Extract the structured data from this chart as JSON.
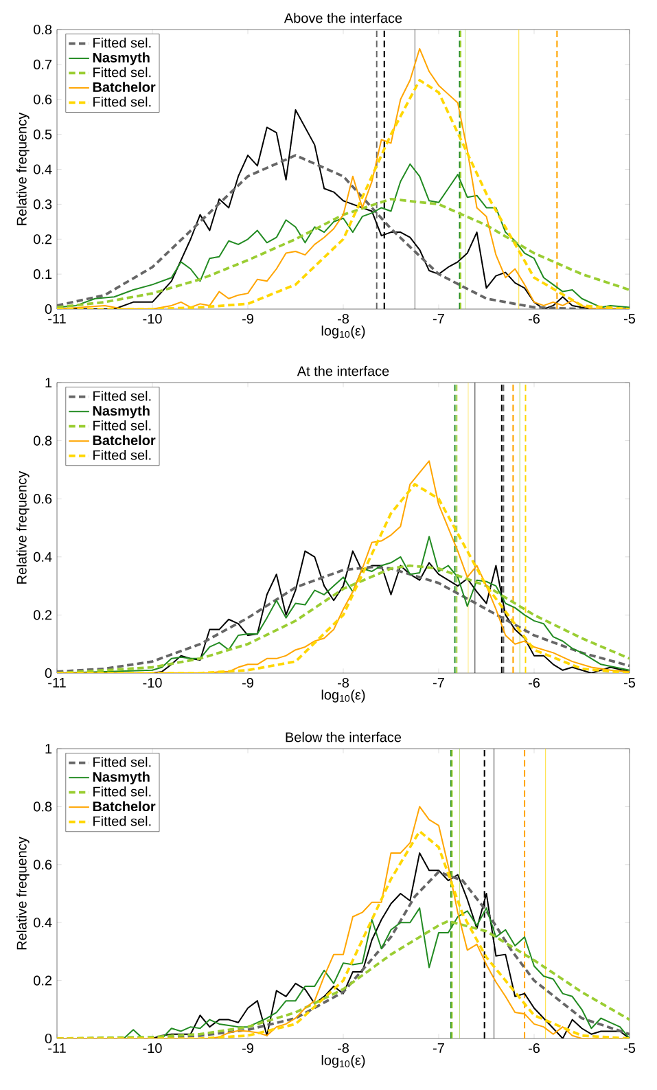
{
  "chart_data": [
    {
      "type": "line",
      "title": "Above the interface",
      "xlabel": "log$_{10}$(ε)",
      "ylabel": "Relative frequency",
      "xlim": [
        -11,
        -5
      ],
      "xticks": [
        -11,
        -10,
        -9,
        -8,
        -7,
        -6,
        -5
      ],
      "ylim": [
        0,
        0.8
      ],
      "yticks": [
        0,
        0.1,
        0.2,
        0.3,
        0.4,
        0.5,
        0.6,
        0.7,
        0.8
      ],
      "grid": false,
      "legend": "top left",
      "series": [
        {
          "color": "#000000",
          "line_style": "solid",
          "x": [
            -11,
            -10.8,
            -10.6,
            -10.4,
            -10.2,
            -10,
            -9.8,
            -9.6,
            -9.5,
            -9.4,
            -9.3,
            -9.2,
            -9.1,
            -9,
            -8.9,
            -8.8,
            -8.7,
            -8.6,
            -8.5,
            -8.3,
            -8.2,
            -8.1,
            -8,
            -7.8,
            -7.7,
            -7.6,
            -7.5,
            -7.4,
            -7.3,
            -7.2,
            -7.1,
            -7,
            -6.9,
            -6.8,
            -6.7,
            -6.6,
            -6.5,
            -6.4,
            -6.3,
            -6.2,
            -6.1,
            -6,
            -5.9,
            -5.8,
            -5.7,
            -5.6,
            -5.4,
            -5
          ],
          "values": [
            0,
            0,
            0,
            0,
            0.02,
            0.02,
            0.08,
            0.2,
            0.27,
            0.225,
            0.315,
            0.29,
            0.38,
            0.44,
            0.41,
            0.52,
            0.505,
            0.37,
            0.57,
            0.47,
            0.345,
            0.335,
            0.31,
            0.29,
            0.28,
            0.21,
            0.22,
            0.22,
            0.205,
            0.17,
            0.11,
            0.1,
            0.12,
            0.135,
            0.16,
            0.22,
            0.06,
            0.095,
            0.105,
            0.075,
            0.06,
            0.02,
            0,
            0.01,
            0.035,
            0.01,
            0,
            0
          ]
        },
        {
          "name": "Fitted sel.",
          "color": "#666666",
          "line_style": "dashed",
          "x": [
            -11,
            -10.5,
            -10,
            -9.5,
            -9,
            -8.5,
            -8,
            -7.5,
            -7,
            -6.5,
            -6,
            -5.5,
            -5
          ],
          "values": [
            0.01,
            0.04,
            0.12,
            0.25,
            0.38,
            0.44,
            0.38,
            0.23,
            0.1,
            0.03,
            0.005,
            0,
            0
          ]
        },
        {
          "name": "Nasmyth",
          "color": "#228b22",
          "line_style": "solid",
          "x": [
            -11,
            -10.8,
            -10.6,
            -10.4,
            -10.2,
            -10,
            -9.8,
            -9.7,
            -9.6,
            -9.5,
            -9.4,
            -9.3,
            -9.2,
            -9.1,
            -9,
            -8.9,
            -8.8,
            -8.7,
            -8.6,
            -8.5,
            -8.4,
            -8.3,
            -8.2,
            -8.1,
            -8,
            -7.9,
            -7.8,
            -7.7,
            -7.6,
            -7.5,
            -7.4,
            -7.3,
            -7.2,
            -7.1,
            -7,
            -6.9,
            -6.8,
            -6.7,
            -6.6,
            -6.5,
            -6.4,
            -6.3,
            -6.2,
            -6.1,
            -6,
            -5.9,
            -5.8,
            -5.7,
            -5.6,
            -5.5,
            -5.3,
            -5.2,
            -5
          ],
          "values": [
            0.005,
            0.01,
            0.03,
            0.035,
            0.055,
            0.07,
            0.09,
            0.135,
            0.115,
            0.08,
            0.145,
            0.15,
            0.195,
            0.185,
            0.2,
            0.225,
            0.19,
            0.205,
            0.255,
            0.235,
            0.19,
            0.235,
            0.22,
            0.25,
            0.26,
            0.22,
            0.265,
            0.275,
            0.29,
            0.28,
            0.365,
            0.415,
            0.38,
            0.31,
            0.305,
            0.345,
            0.385,
            0.32,
            0.325,
            0.29,
            0.29,
            0.22,
            0.195,
            0.16,
            0.145,
            0.09,
            0.07,
            0.05,
            0.055,
            0.03,
            0.005,
            0.01,
            0.005
          ]
        },
        {
          "name": "Fitted sel.",
          "color": "#9acd32",
          "line_style": "dashed",
          "x": [
            -11,
            -10.5,
            -10,
            -9.5,
            -9,
            -8.5,
            -8,
            -7.5,
            -7,
            -6.5,
            -6,
            -5.5,
            -5
          ],
          "values": [
            0.005,
            0.02,
            0.045,
            0.085,
            0.14,
            0.2,
            0.27,
            0.315,
            0.3,
            0.24,
            0.16,
            0.1,
            0.055
          ]
        },
        {
          "name": "Batchelor",
          "color": "#ffa500",
          "line_style": "solid",
          "x": [
            -11,
            -10.5,
            -10.3,
            -10,
            -9.8,
            -9.7,
            -9.6,
            -9.5,
            -9.4,
            -9.3,
            -9.2,
            -9.1,
            -9,
            -8.9,
            -8.8,
            -8.7,
            -8.6,
            -8.5,
            -8.4,
            -8.3,
            -8.2,
            -8.1,
            -8,
            -7.9,
            -7.8,
            -7.7,
            -7.6,
            -7.5,
            -7.4,
            -7.3,
            -7.2,
            -7.1,
            -7,
            -6.9,
            -6.8,
            -6.7,
            -6.6,
            -6.5,
            -6.4,
            -6.3,
            -6.2,
            -6.1,
            -6,
            -5.9,
            -5.8,
            -5.7,
            -5.6,
            -5.5,
            -5.4,
            -5
          ],
          "values": [
            0,
            0.01,
            0,
            0,
            0.01,
            0.02,
            0.005,
            0.015,
            0.01,
            0.05,
            0.03,
            0.04,
            0.045,
            0.085,
            0.08,
            0.115,
            0.16,
            0.165,
            0.155,
            0.185,
            0.205,
            0.23,
            0.27,
            0.38,
            0.29,
            0.365,
            0.485,
            0.475,
            0.6,
            0.655,
            0.745,
            0.68,
            0.64,
            0.615,
            0.59,
            0.455,
            0.29,
            0.265,
            0.155,
            0.09,
            0.115,
            0.07,
            0.02,
            0.01,
            0.02,
            0.01,
            0.025,
            0.01,
            0,
            0
          ]
        },
        {
          "name": "Fitted sel.",
          "color": "#ffd700",
          "line_style": "dashed",
          "x": [
            -11,
            -10,
            -9.5,
            -9,
            -8.5,
            -8,
            -7.5,
            -7.2,
            -7,
            -6.5,
            -6,
            -5.5,
            -5
          ],
          "values": [
            0,
            0,
            0.005,
            0.015,
            0.07,
            0.2,
            0.5,
            0.655,
            0.62,
            0.33,
            0.09,
            0.01,
            0
          ]
        }
      ],
      "ref_lines": [
        {
          "axis": "x",
          "value": -7.65,
          "color": "#666666",
          "line_style": "dashed"
        },
        {
          "axis": "x",
          "value": -7.57,
          "color": "#000000",
          "line_style": "dashed"
        },
        {
          "axis": "x",
          "value": -7.25,
          "color": "#000000",
          "line_style": "solid"
        },
        {
          "axis": "x",
          "value": -6.78,
          "color": "#228b22",
          "line_style": "dashed"
        },
        {
          "axis": "x",
          "value": -6.77,
          "color": "#9acd32",
          "line_style": "dashed"
        },
        {
          "axis": "x",
          "value": -6.72,
          "color": "#9acd32",
          "line_style": "solid"
        },
        {
          "axis": "x",
          "value": -6.16,
          "color": "#ffd700",
          "line_style": "solid"
        },
        {
          "axis": "x",
          "value": -5.76,
          "color": "#ffa500",
          "line_style": "dashed"
        }
      ]
    },
    {
      "type": "line",
      "title": "At the interface",
      "xlabel": "log$_{10}$(ε)",
      "ylabel": "Relative frequency",
      "xlim": [
        -11,
        -5
      ],
      "xticks": [
        -11,
        -10,
        -9,
        -8,
        -7,
        -6,
        -5
      ],
      "ylim": [
        0,
        1
      ],
      "yticks": [
        0,
        0.2,
        0.4,
        0.6,
        0.8,
        1
      ],
      "grid": false,
      "legend": "top left",
      "series": [
        {
          "color": "#000000",
          "line_style": "solid",
          "x": [
            -11,
            -10,
            -9.9,
            -9.8,
            -9.7,
            -9.6,
            -9.5,
            -9.4,
            -9.3,
            -9.2,
            -9.1,
            -9,
            -8.9,
            -8.8,
            -8.7,
            -8.6,
            -8.5,
            -8.4,
            -8.3,
            -8.2,
            -8.1,
            -8,
            -7.9,
            -7.8,
            -7.7,
            -7.6,
            -7.5,
            -7.4,
            -7.3,
            -7.2,
            -7.1,
            -7,
            -6.9,
            -6.8,
            -6.7,
            -6.6,
            -6.5,
            -6.4,
            -6.3,
            -6.2,
            -6.1,
            -6,
            -5.9,
            -5.8,
            -5.7,
            -5.6,
            -5.4,
            -5.2,
            -5
          ],
          "values": [
            0,
            0,
            0.005,
            0.03,
            0.06,
            0.05,
            0.045,
            0.15,
            0.15,
            0.185,
            0.17,
            0.13,
            0.135,
            0.27,
            0.34,
            0.2,
            0.285,
            0.42,
            0.4,
            0.3,
            0.25,
            0.3,
            0.42,
            0.35,
            0.37,
            0.37,
            0.27,
            0.37,
            0.34,
            0.32,
            0.38,
            0.34,
            0.32,
            0.3,
            0.325,
            0.28,
            0.24,
            0.37,
            0.2,
            0.15,
            0.12,
            0.06,
            0.06,
            0.03,
            0.01,
            0.02,
            0,
            0.02,
            0.005
          ]
        },
        {
          "name": "Fitted sel.",
          "color": "#666666",
          "line_style": "dashed",
          "x": [
            -11,
            -10.5,
            -10,
            -9.5,
            -9,
            -8.5,
            -8,
            -7.7,
            -7.5,
            -7,
            -6.5,
            -6,
            -5.5,
            -5
          ],
          "values": [
            0.005,
            0.015,
            0.04,
            0.1,
            0.19,
            0.295,
            0.355,
            0.365,
            0.36,
            0.31,
            0.22,
            0.13,
            0.07,
            0.025
          ]
        },
        {
          "name": "Nasmyth",
          "color": "#228b22",
          "line_style": "solid",
          "x": [
            -11,
            -10.5,
            -10,
            -9.9,
            -9.8,
            -9.7,
            -9.6,
            -9.5,
            -9.4,
            -9.3,
            -9.2,
            -9.1,
            -9,
            -8.9,
            -8.8,
            -8.7,
            -8.6,
            -8.5,
            -8.4,
            -8.3,
            -8.2,
            -8.1,
            -8,
            -7.9,
            -7.8,
            -7.7,
            -7.6,
            -7.5,
            -7.4,
            -7.3,
            -7.2,
            -7.1,
            -7,
            -6.9,
            -6.8,
            -6.7,
            -6.6,
            -6.5,
            -6.4,
            -6.3,
            -6.2,
            -6.1,
            -6,
            -5.9,
            -5.8,
            -5.7,
            -5.6,
            -5.5,
            -5.3,
            -5
          ],
          "values": [
            0,
            0.005,
            0.01,
            0.02,
            0.05,
            0.055,
            0.05,
            0.05,
            0.09,
            0.105,
            0.08,
            0.13,
            0.135,
            0.135,
            0.19,
            0.25,
            0.19,
            0.24,
            0.235,
            0.285,
            0.27,
            0.3,
            0.33,
            0.28,
            0.36,
            0.35,
            0.37,
            0.38,
            0.4,
            0.34,
            0.345,
            0.47,
            0.35,
            0.37,
            0.33,
            0.23,
            0.32,
            0.315,
            0.3,
            0.24,
            0.225,
            0.2,
            0.18,
            0.17,
            0.125,
            0.11,
            0.085,
            0.07,
            0.03,
            0.01
          ]
        },
        {
          "name": "Fitted sel.",
          "color": "#9acd32",
          "line_style": "dashed",
          "x": [
            -11,
            -10,
            -9.5,
            -9,
            -8.5,
            -8,
            -7.5,
            -7.3,
            -7,
            -6.5,
            -6,
            -5.5,
            -5
          ],
          "values": [
            0,
            0.02,
            0.05,
            0.1,
            0.18,
            0.29,
            0.36,
            0.37,
            0.36,
            0.3,
            0.2,
            0.12,
            0.05
          ]
        },
        {
          "name": "Batchelor",
          "color": "#ffa500",
          "line_style": "solid",
          "x": [
            -11,
            -9.4,
            -9.3,
            -9.2,
            -9.1,
            -9,
            -8.9,
            -8.8,
            -8.7,
            -8.6,
            -8.5,
            -8.4,
            -8.3,
            -8.2,
            -8.1,
            -8,
            -7.9,
            -7.8,
            -7.7,
            -7.6,
            -7.5,
            -7.4,
            -7.3,
            -7.2,
            -7.1,
            -7,
            -6.9,
            -6.8,
            -6.7,
            -6.6,
            -6.5,
            -6.4,
            -6.3,
            -6.2,
            -6.1,
            -6,
            -5.9,
            -5.8,
            -5.6,
            -5.4,
            -5.2,
            -5
          ],
          "values": [
            0,
            0,
            0.005,
            0.005,
            0.02,
            0.03,
            0.03,
            0.05,
            0.05,
            0.06,
            0.08,
            0.09,
            0.11,
            0.12,
            0.15,
            0.22,
            0.28,
            0.36,
            0.45,
            0.455,
            0.475,
            0.505,
            0.65,
            0.69,
            0.73,
            0.58,
            0.5,
            0.42,
            0.33,
            0.37,
            0.3,
            0.22,
            0.13,
            0.1,
            0.11,
            0.09,
            0.08,
            0.07,
            0.04,
            0.02,
            0.01,
            0.005
          ]
        },
        {
          "name": "Fitted sel.",
          "color": "#ffd700",
          "line_style": "dashed",
          "x": [
            -11,
            -9.5,
            -9,
            -8.5,
            -8,
            -7.5,
            -7.25,
            -7,
            -6.5,
            -6,
            -5.5,
            -5
          ],
          "values": [
            0,
            0,
            0.01,
            0.04,
            0.2,
            0.55,
            0.65,
            0.6,
            0.3,
            0.08,
            0.015,
            0
          ]
        }
      ],
      "ref_lines": [
        {
          "axis": "x",
          "value": -6.83,
          "color": "#228b22",
          "line_style": "dashed"
        },
        {
          "axis": "x",
          "value": -6.81,
          "color": "#9acd32",
          "line_style": "dashed"
        },
        {
          "axis": "x",
          "value": -6.69,
          "color": "#ffd700",
          "line_style": "solid"
        },
        {
          "axis": "x",
          "value": -6.62,
          "color": "#000000",
          "line_style": "solid"
        },
        {
          "axis": "x",
          "value": -6.34,
          "color": "#000000",
          "line_style": "dashed"
        },
        {
          "axis": "x",
          "value": -6.32,
          "color": "#666666",
          "line_style": "dashed"
        },
        {
          "axis": "x",
          "value": -6.22,
          "color": "#ffa500",
          "line_style": "dashed"
        },
        {
          "axis": "x",
          "value": -6.15,
          "color": "#9acd32",
          "line_style": "solid"
        },
        {
          "axis": "x",
          "value": -6.09,
          "color": "#ffd700",
          "line_style": "dashed"
        }
      ]
    },
    {
      "type": "line",
      "title": "Below the interface",
      "xlabel": "log$_{10}$(ε)",
      "ylabel": "Relative frequency",
      "xlim": [
        -11,
        -5
      ],
      "xticks": [
        -11,
        -10,
        -9,
        -8,
        -7,
        -6,
        -5
      ],
      "ylim": [
        0,
        1
      ],
      "yticks": [
        0,
        0.2,
        0.4,
        0.6,
        0.8,
        1
      ],
      "grid": false,
      "legend": "top left",
      "series": [
        {
          "color": "#000000",
          "line_style": "solid",
          "x": [
            -11,
            -10,
            -9.9,
            -9.8,
            -9.7,
            -9.6,
            -9.5,
            -9.4,
            -9.3,
            -9.2,
            -9.1,
            -9,
            -8.9,
            -8.8,
            -8.7,
            -8.6,
            -8.5,
            -8.4,
            -8.3,
            -8.2,
            -8.1,
            -8,
            -7.9,
            -7.8,
            -7.7,
            -7.6,
            -7.5,
            -7.4,
            -7.3,
            -7.2,
            -7.1,
            -7,
            -6.9,
            -6.8,
            -6.7,
            -6.6,
            -6.5,
            -6.4,
            -6.3,
            -6.2,
            -6.1,
            -6,
            -5.9,
            -5.8,
            -5.7,
            -5.6,
            -5.5,
            -5.4,
            -5.3,
            -5.2,
            -5.1,
            -5
          ],
          "values": [
            0,
            0,
            0.01,
            0.015,
            0.015,
            0.015,
            0.08,
            0.04,
            0.065,
            0.065,
            0.055,
            0.105,
            0.13,
            0.01,
            0.165,
            0.145,
            0.19,
            0.17,
            0.12,
            0.145,
            0.18,
            0.155,
            0.23,
            0.23,
            0.34,
            0.41,
            0.465,
            0.5,
            0.475,
            0.64,
            0.58,
            0.58,
            0.545,
            0.565,
            0.48,
            0.38,
            0.5,
            0.285,
            0.29,
            0.145,
            0.155,
            0.105,
            0.07,
            0.035,
            0,
            0.065,
            0.035,
            0.015,
            0.025,
            0.025,
            0.025,
            0
          ]
        },
        {
          "name": "Fitted sel.",
          "color": "#666666",
          "line_style": "dashed",
          "x": [
            -11,
            -10,
            -9.5,
            -9,
            -8.5,
            -8,
            -7.5,
            -7.25,
            -7,
            -6.75,
            -6.5,
            -6.25,
            -6,
            -5.5,
            -5
          ],
          "values": [
            0,
            0.002,
            0.01,
            0.03,
            0.07,
            0.16,
            0.35,
            0.49,
            0.575,
            0.545,
            0.44,
            0.31,
            0.2,
            0.07,
            0.015
          ]
        },
        {
          "name": "Nasmyth",
          "color": "#228b22",
          "line_style": "solid",
          "x": [
            -11,
            -10.3,
            -10.2,
            -10.1,
            -9.9,
            -9.8,
            -9.7,
            -9.6,
            -9.5,
            -9.4,
            -9.3,
            -9.2,
            -9.1,
            -9,
            -8.9,
            -8.8,
            -8.7,
            -8.6,
            -8.5,
            -8.4,
            -8.3,
            -8.2,
            -8.1,
            -8,
            -7.9,
            -7.8,
            -7.7,
            -7.6,
            -7.5,
            -7.4,
            -7.3,
            -7.2,
            -7.1,
            -7,
            -6.9,
            -6.8,
            -6.7,
            -6.6,
            -6.5,
            -6.4,
            -6.3,
            -6.2,
            -6.1,
            -6,
            -5.9,
            -5.8,
            -5.7,
            -5.6,
            -5.5,
            -5.4,
            -5.3,
            -5.2,
            -5.1,
            -5
          ],
          "values": [
            0,
            0,
            0.03,
            0,
            0,
            0.035,
            0.025,
            0.04,
            0.035,
            0.065,
            0.05,
            0.045,
            0.04,
            0.04,
            0.055,
            0.07,
            0.09,
            0.13,
            0.13,
            0.18,
            0.18,
            0.235,
            0.19,
            0.26,
            0.255,
            0.26,
            0.41,
            0.31,
            0.375,
            0.4,
            0.4,
            0.45,
            0.245,
            0.365,
            0.365,
            0.42,
            0.44,
            0.39,
            0.45,
            0.35,
            0.375,
            0.32,
            0.35,
            0.25,
            0.215,
            0.205,
            0.155,
            0.145,
            0.1,
            0.035,
            0.07,
            0.055,
            0.04,
            0
          ]
        },
        {
          "name": "Fitted sel.",
          "color": "#9acd32",
          "line_style": "dashed",
          "x": [
            -11,
            -10,
            -9.5,
            -9,
            -8.5,
            -8,
            -7.5,
            -7,
            -6.9,
            -6.5,
            -6,
            -5.5,
            -5
          ],
          "values": [
            0,
            0.005,
            0.015,
            0.04,
            0.09,
            0.17,
            0.29,
            0.39,
            0.405,
            0.37,
            0.27,
            0.16,
            0.065
          ]
        },
        {
          "name": "Batchelor",
          "color": "#ffa500",
          "line_style": "solid",
          "x": [
            -11,
            -9.4,
            -9.3,
            -9.2,
            -9.1,
            -9,
            -8.9,
            -8.8,
            -8.7,
            -8.6,
            -8.5,
            -8.4,
            -8.3,
            -8.2,
            -8.1,
            -8,
            -7.9,
            -7.8,
            -7.7,
            -7.6,
            -7.5,
            -7.4,
            -7.3,
            -7.2,
            -7.1,
            -7,
            -6.9,
            -6.8,
            -6.7,
            -6.6,
            -6.5,
            -6.4,
            -6.3,
            -6.2,
            -6.1,
            -6,
            -5.9,
            -5.8,
            -5.7,
            -5.6,
            -5.5,
            -5
          ],
          "values": [
            0,
            0,
            0.005,
            0.02,
            0.027,
            0.025,
            0.02,
            0.01,
            0.04,
            0.05,
            0.07,
            0.105,
            0.13,
            0.215,
            0.29,
            0.29,
            0.42,
            0.435,
            0.47,
            0.47,
            0.64,
            0.64,
            0.675,
            0.8,
            0.755,
            0.735,
            0.595,
            0.435,
            0.305,
            0.325,
            0.255,
            0.195,
            0.145,
            0.09,
            0.085,
            0.05,
            0.04,
            0.015,
            0.04,
            0.01,
            0,
            0
          ]
        },
        {
          "name": "Fitted sel.",
          "color": "#ffd700",
          "line_style": "dashed",
          "x": [
            -11,
            -9.5,
            -9,
            -8.5,
            -8,
            -7.5,
            -7.2,
            -7,
            -6.75,
            -6.5,
            -6,
            -5.5,
            -5
          ],
          "values": [
            0,
            0,
            0.01,
            0.05,
            0.2,
            0.55,
            0.715,
            0.66,
            0.43,
            0.28,
            0.08,
            0.01,
            0
          ]
        }
      ],
      "ref_lines": [
        {
          "axis": "x",
          "value": -6.87,
          "color": "#228b22",
          "line_style": "dashed"
        },
        {
          "axis": "x",
          "value": -6.86,
          "color": "#9acd32",
          "line_style": "dashed"
        },
        {
          "axis": "x",
          "value": -6.78,
          "color": "#9acd32",
          "line_style": "solid"
        },
        {
          "axis": "x",
          "value": -6.52,
          "color": "#000000",
          "line_style": "dashed"
        },
        {
          "axis": "x",
          "value": -6.42,
          "color": "#000000",
          "line_style": "solid"
        },
        {
          "axis": "x",
          "value": -6.1,
          "color": "#ffa500",
          "line_style": "dashed"
        },
        {
          "axis": "x",
          "value": -5.88,
          "color": "#ffd700",
          "line_style": "solid"
        }
      ]
    }
  ]
}
